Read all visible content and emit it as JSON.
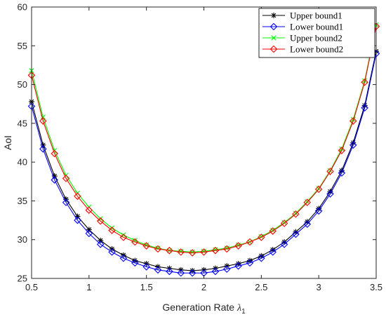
{
  "chart_data": {
    "type": "line",
    "xlabel": "Generation Rate",
    "xlabel_symbol": "λ",
    "xlabel_subscript": "1",
    "ylabel": "AoI",
    "xlim": [
      0.5,
      3.5
    ],
    "ylim": [
      25,
      60
    ],
    "xticks": [
      "0.5",
      "1",
      "1.5",
      "2",
      "2.5",
      "3",
      "3.5"
    ],
    "yticks": [
      "25",
      "30",
      "35",
      "40",
      "45",
      "50",
      "55",
      "60"
    ],
    "grid": false,
    "legend_position": "top-right",
    "x": [
      0.5,
      0.6,
      0.7,
      0.8,
      0.9,
      1.0,
      1.1,
      1.2,
      1.3,
      1.4,
      1.5,
      1.6,
      1.7,
      1.8,
      1.9,
      2.0,
      2.1,
      2.2,
      2.3,
      2.4,
      2.5,
      2.6,
      2.7,
      2.8,
      2.9,
      3.0,
      3.1,
      3.2,
      3.3,
      3.4,
      3.5
    ],
    "series": [
      {
        "name": "Upper bound1",
        "color": "#000000",
        "marker": "asterisk",
        "values": [
          47.8,
          42.2,
          38.2,
          35.2,
          33.0,
          31.3,
          29.9,
          28.8,
          28.0,
          27.3,
          26.9,
          26.5,
          26.3,
          26.1,
          26.0,
          26.1,
          26.3,
          26.6,
          26.9,
          27.3,
          27.9,
          28.7,
          29.7,
          31.0,
          32.3,
          34.0,
          36.2,
          38.9,
          42.5,
          47.3,
          54.3
        ]
      },
      {
        "name": "Lower bound1",
        "color": "#0000ff",
        "marker": "diamond",
        "values": [
          47.2,
          41.7,
          37.7,
          34.8,
          32.5,
          30.8,
          29.4,
          28.4,
          27.6,
          27.0,
          26.5,
          26.1,
          25.9,
          25.7,
          25.7,
          25.7,
          25.9,
          26.2,
          26.6,
          27.0,
          27.6,
          28.4,
          29.4,
          30.7,
          32.0,
          33.7,
          35.9,
          38.6,
          42.2,
          47.0,
          54.0
        ]
      },
      {
        "name": "Upper bound2",
        "color": "#00ff00",
        "marker": "cross",
        "values": [
          51.8,
          45.8,
          41.5,
          38.3,
          36.0,
          34.2,
          32.7,
          31.5,
          30.6,
          29.9,
          29.3,
          28.9,
          28.6,
          28.5,
          28.4,
          28.5,
          28.7,
          28.9,
          29.3,
          29.7,
          30.4,
          31.2,
          32.2,
          33.4,
          34.9,
          36.6,
          38.9,
          41.7,
          45.5,
          50.5,
          57.7
        ]
      },
      {
        "name": "Lower bound2",
        "color": "#ff0000",
        "marker": "diamond",
        "values": [
          51.2,
          45.3,
          41.1,
          37.9,
          35.6,
          33.8,
          32.4,
          31.2,
          30.3,
          29.7,
          29.2,
          28.8,
          28.6,
          28.4,
          28.3,
          28.4,
          28.6,
          28.8,
          29.2,
          29.7,
          30.3,
          31.1,
          32.1,
          33.3,
          34.8,
          36.5,
          38.8,
          41.5,
          45.3,
          50.3,
          57.5
        ]
      }
    ]
  }
}
